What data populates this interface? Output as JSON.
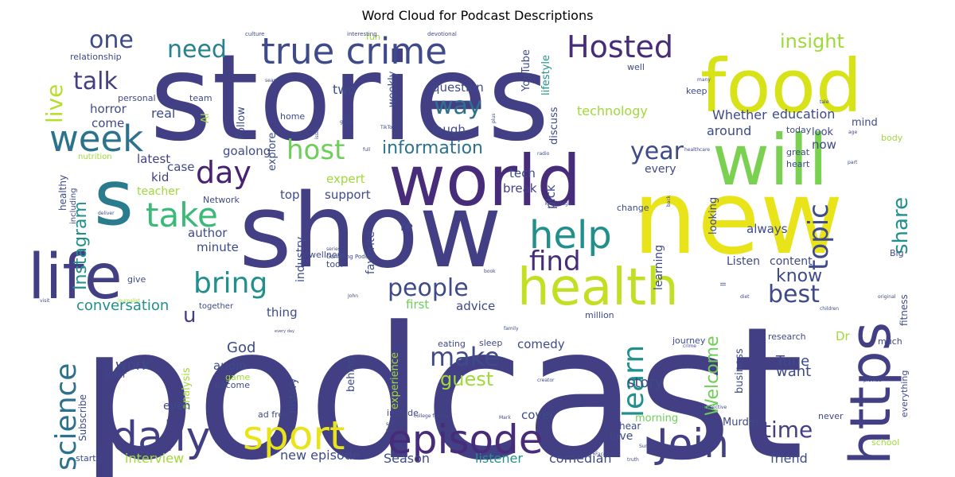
{
  "chart_data": {
    "type": "wordcloud",
    "title": "Word Cloud for Podcast Descriptions",
    "palette": [
      "#440154",
      "#482878",
      "#3e4989",
      "#31688e",
      "#26828e",
      "#1f9e89",
      "#35b779",
      "#6ece58",
      "#b5de2b",
      "#fde725"
    ],
    "words": [
      {
        "text": "podcast",
        "weight": 100,
        "color": "#433f84"
      },
      {
        "text": "stories",
        "weight": 96,
        "color": "#433f84"
      },
      {
        "text": "show",
        "weight": 82,
        "color": "#433f84"
      },
      {
        "text": "new",
        "weight": 80,
        "color": "#e8e419"
      },
      {
        "text": "food",
        "weight": 64,
        "color": "#d8e219"
      },
      {
        "text": "world",
        "weight": 60,
        "color": "#472c7a"
      },
      {
        "text": "will",
        "weight": 58,
        "color": "#7ad151"
      },
      {
        "text": "s",
        "weight": 55,
        "color": "#2a7b8e"
      },
      {
        "text": "health",
        "weight": 52,
        "color": "#c2df23"
      },
      {
        "text": "life",
        "weight": 52,
        "color": "#433f84"
      },
      {
        "text": "https",
        "weight": 50,
        "color": "#433f84"
      },
      {
        "text": "sport",
        "weight": 36,
        "color": "#e8e419"
      },
      {
        "text": "episode",
        "weight": 36,
        "color": "#472c7a"
      },
      {
        "text": "daily",
        "weight": 34,
        "color": "#433f84"
      },
      {
        "text": "Join",
        "weight": 34,
        "color": "#433f84"
      },
      {
        "text": "true crime",
        "weight": 32,
        "color": "#3e4a89"
      },
      {
        "text": "week",
        "weight": 32,
        "color": "#2c728e"
      },
      {
        "text": "Hosted",
        "weight": 30,
        "color": "#472c7a"
      },
      {
        "text": "help",
        "weight": 30,
        "color": "#21908d"
      },
      {
        "text": "day",
        "weight": 30,
        "color": "#482173"
      },
      {
        "text": "take",
        "weight": 28,
        "color": "#3aba76"
      },
      {
        "text": "bring",
        "weight": 28,
        "color": "#21908d"
      },
      {
        "text": "host",
        "weight": 28,
        "color": "#6ece58"
      },
      {
        "text": "science",
        "weight": 26,
        "color": "#2c728e"
      },
      {
        "text": "find",
        "weight": 26,
        "color": "#472c7a"
      },
      {
        "text": "people",
        "weight": 24,
        "color": "#3e4a89"
      },
      {
        "text": "best",
        "weight": 24,
        "color": "#3e4a89"
      },
      {
        "text": "topic",
        "weight": 24,
        "color": "#3e4a89"
      },
      {
        "text": "learn",
        "weight": 24,
        "color": "#21908d"
      },
      {
        "text": "need",
        "weight": 22,
        "color": "#26828e"
      },
      {
        "text": "one",
        "weight": 22,
        "color": "#3e4a89"
      },
      {
        "text": "talk",
        "weight": 22,
        "color": "#433f84"
      },
      {
        "text": "way",
        "weight": 22,
        "color": "#2c728e"
      },
      {
        "text": "year",
        "weight": 22,
        "color": "#3e4a89"
      },
      {
        "text": "make",
        "weight": 22,
        "color": "#3e4a89"
      },
      {
        "text": "time",
        "weight": 22,
        "color": "#433f84"
      },
      {
        "text": "share",
        "weight": 20,
        "color": "#21908d"
      },
      {
        "text": "live",
        "weight": 20,
        "color": "#b5de2b"
      },
      {
        "text": "insight",
        "weight": 18,
        "color": "#a0da39"
      },
      {
        "text": "information",
        "weight": 18,
        "color": "#2c728e"
      },
      {
        "text": "know",
        "weight": 18,
        "color": "#3e4a89"
      },
      {
        "text": "guest",
        "weight": 18,
        "color": "#a0da39"
      },
      {
        "text": "Instagram",
        "weight": 18,
        "color": "#21908d"
      },
      {
        "text": "Welcome",
        "weight": 18,
        "color": "#6ece58"
      },
      {
        "text": "u",
        "weight": 18,
        "color": "#433f84"
      },
      {
        "text": "God",
        "weight": 14,
        "color": "#3e4a89"
      },
      {
        "text": "work",
        "weight": 14,
        "color": "#3e4a89"
      },
      {
        "text": "story",
        "weight": 14,
        "color": "#3e4a89"
      },
      {
        "text": "Tune",
        "weight": 14,
        "color": "#3e4a89"
      },
      {
        "text": "want",
        "weight": 14,
        "color": "#3e4a89"
      },
      {
        "text": "conversation",
        "weight": 14,
        "color": "#21908d"
      },
      {
        "text": "comedian",
        "weight": 13,
        "color": "#3e4a89"
      },
      {
        "text": "interview",
        "weight": 13,
        "color": "#a0da39"
      },
      {
        "text": "new episode",
        "weight": 13,
        "color": "#3e4a89"
      },
      {
        "text": "Season",
        "weight": 13,
        "color": "#3e4a89"
      },
      {
        "text": "listener",
        "weight": 13,
        "color": "#21908d"
      },
      {
        "text": "friend",
        "weight": 13,
        "color": "#3e4a89"
      },
      {
        "text": "Murder",
        "weight": 11,
        "color": "#3e4a89"
      },
      {
        "text": "love",
        "weight": 12,
        "color": "#3e4a89"
      },
      {
        "text": "hear",
        "weight": 11,
        "color": "#3e4a89"
      },
      {
        "text": "morning",
        "weight": 11,
        "color": "#6ece58"
      },
      {
        "text": "cover",
        "weight": 13,
        "color": "#3e4a89"
      },
      {
        "text": "comedy",
        "weight": 13,
        "color": "#3e4a89"
      },
      {
        "text": "technology",
        "weight": 14,
        "color": "#a0da39"
      },
      {
        "text": "education",
        "weight": 14,
        "color": "#3e4a89"
      },
      {
        "text": "Whether",
        "weight": 14,
        "color": "#3e4a89"
      },
      {
        "text": "around",
        "weight": 14,
        "color": "#3e4a89"
      },
      {
        "text": "question",
        "weight": 13,
        "color": "#3e4a89"
      },
      {
        "text": "laugh",
        "weight": 13,
        "color": "#3e4a89"
      },
      {
        "text": "horror",
        "weight": 13,
        "color": "#3e4a89"
      },
      {
        "text": "real",
        "weight": 14,
        "color": "#3e4a89"
      },
      {
        "text": "come",
        "weight": 13,
        "color": "#3e4a89"
      },
      {
        "text": "case",
        "weight": 13,
        "color": "#3e4a89"
      },
      {
        "text": "latest",
        "weight": 13,
        "color": "#433f84"
      },
      {
        "text": "goalong",
        "weight": 13,
        "color": "#3e4a89"
      },
      {
        "text": "expert",
        "weight": 13,
        "color": "#a0da39"
      },
      {
        "text": "tech",
        "weight": 13,
        "color": "#3e4a89"
      },
      {
        "text": "break",
        "weight": 13,
        "color": "#433f84"
      },
      {
        "text": "support",
        "weight": 13,
        "color": "#3e4a89"
      },
      {
        "text": "top",
        "weight": 13,
        "color": "#3e4a89"
      },
      {
        "text": "teacher",
        "weight": 12,
        "color": "#a0da39"
      },
      {
        "text": "kid",
        "weight": 13,
        "color": "#433f84"
      },
      {
        "text": "author",
        "weight": 13,
        "color": "#3e4a89"
      },
      {
        "text": "minute",
        "weight": 13,
        "color": "#3e4a89"
      },
      {
        "text": "thing",
        "weight": 13,
        "color": "#3e4a89"
      },
      {
        "text": "advice",
        "weight": 13,
        "color": "#3e4a89"
      },
      {
        "text": "first",
        "weight": 13,
        "color": "#6ece58"
      },
      {
        "text": "re",
        "weight": 14,
        "color": "#3e4a89"
      },
      {
        "text": "favorite",
        "weight": 12,
        "color": "#3e4a89"
      },
      {
        "text": "industry",
        "weight": 12,
        "color": "#3e4a89"
      },
      {
        "text": "pick",
        "weight": 13,
        "color": "#3e4a89"
      },
      {
        "text": "two",
        "weight": 13,
        "color": "#3e4a89"
      },
      {
        "text": "weekly",
        "weight": 12,
        "color": "#3e4a89"
      },
      {
        "text": "lifestyle",
        "weight": 12,
        "color": "#21908d"
      },
      {
        "text": "YouTube",
        "weight": 12,
        "color": "#3e4a89"
      },
      {
        "text": "discuss",
        "weight": 12,
        "color": "#3e4a89"
      },
      {
        "text": "looking",
        "weight": 12,
        "color": "#3e4a89"
      },
      {
        "text": "always",
        "weight": 13,
        "color": "#3e4a89"
      },
      {
        "text": "every",
        "weight": 13,
        "color": "#3e4a89"
      },
      {
        "text": "now",
        "weight": 13,
        "color": "#3e4a89"
      },
      {
        "text": "look",
        "weight": 12,
        "color": "#3e4a89"
      },
      {
        "text": "mind",
        "weight": 12,
        "color": "#3e4a89"
      },
      {
        "text": "great",
        "weight": 10,
        "color": "#3e4a89"
      },
      {
        "text": "heart",
        "weight": 10,
        "color": "#3e4a89"
      },
      {
        "text": "today",
        "weight": 10,
        "color": "#3e4a89"
      },
      {
        "text": "fitness",
        "weight": 11,
        "color": "#3e4a89"
      },
      {
        "text": "content",
        "weight": 12,
        "color": "#3e4a89"
      },
      {
        "text": "Listen",
        "weight": 12,
        "color": "#3e4a89"
      },
      {
        "text": "learning",
        "weight": 12,
        "color": "#3e4a89"
      },
      {
        "text": "change",
        "weight": 10,
        "color": "#3e4a89"
      },
      {
        "text": "Big",
        "weight": 10,
        "color": "#3e4a89"
      },
      {
        "text": "Dr",
        "weight": 13,
        "color": "#a0da39"
      },
      {
        "text": "research",
        "weight": 10,
        "color": "#3e4a89"
      },
      {
        "text": "much",
        "weight": 10,
        "color": "#3e4a89"
      },
      {
        "text": "everything",
        "weight": 10,
        "color": "#3e4a89"
      },
      {
        "text": "school",
        "weight": 10,
        "color": "#a0da39"
      },
      {
        "text": "never",
        "weight": 10,
        "color": "#3e4a89"
      },
      {
        "text": "journey",
        "weight": 10,
        "color": "#3e4a89"
      },
      {
        "text": "million",
        "weight": 10,
        "color": "#3e4a89"
      },
      {
        "text": "business",
        "weight": 11,
        "color": "#3e4a89"
      },
      {
        "text": "eating",
        "weight": 10,
        "color": "#3e4a89"
      },
      {
        "text": "sleep",
        "weight": 10,
        "color": "#3e4a89"
      },
      {
        "text": "experience",
        "weight": 11,
        "color": "#a0da39"
      },
      {
        "text": "behind",
        "weight": 11,
        "color": "#3e4a89"
      },
      {
        "text": "history",
        "weight": 11,
        "color": "#3e4a89"
      },
      {
        "text": "analysis",
        "weight": 11,
        "color": "#a0da39"
      },
      {
        "text": "audio",
        "weight": 13,
        "color": "#3e4a89"
      },
      {
        "text": "game",
        "weight": 10,
        "color": "#a0da39"
      },
      {
        "text": "become",
        "weight": 10,
        "color": "#3e4a89"
      },
      {
        "text": "even",
        "weight": 12,
        "color": "#3e4a89"
      },
      {
        "text": "ad free",
        "weight": 10,
        "color": "#3e4a89"
      },
      {
        "text": "include",
        "weight": 10,
        "color": "#3e4a89"
      },
      {
        "text": "offer",
        "weight": 10,
        "color": "#3e4a89"
      },
      {
        "text": "Subscribe",
        "weight": 11,
        "color": "#3e4a89"
      },
      {
        "text": "start",
        "weight": 10,
        "color": "#3e4a89"
      },
      {
        "text": "give",
        "weight": 10,
        "color": "#3e4a89"
      },
      {
        "text": "wellness",
        "weight": 10,
        "color": "#3e4a89"
      },
      {
        "text": "tool",
        "weight": 10,
        "color": "#3e4a89"
      },
      {
        "text": "together",
        "weight": 9,
        "color": "#3e4a89"
      },
      {
        "text": "Network",
        "weight": 9,
        "color": "#3e4a89"
      },
      {
        "text": "healthy",
        "weight": 11,
        "color": "#3e4a89"
      },
      {
        "text": "including",
        "weight": 9,
        "color": "#3e4a89"
      },
      {
        "text": "nutrition",
        "weight": 9,
        "color": "#a0da39"
      },
      {
        "text": "personal",
        "weight": 10,
        "color": "#3e4a89"
      },
      {
        "text": "relationship",
        "weight": 10,
        "color": "#3e4a89"
      },
      {
        "text": "team",
        "weight": 10,
        "color": "#3e4a89"
      },
      {
        "text": "AI",
        "weight": 11,
        "color": "#a0da39"
      },
      {
        "text": "Follow",
        "weight": 11,
        "color": "#3e4a89"
      },
      {
        "text": "explore",
        "weight": 11,
        "color": "#3e4a89"
      },
      {
        "text": "home",
        "weight": 10,
        "color": "#3e4a89"
      },
      {
        "text": "keep",
        "weight": 10,
        "color": "#3e4a89"
      },
      {
        "text": "well",
        "weight": 10,
        "color": "#3e4a89"
      },
      {
        "text": "fun",
        "weight": 9,
        "color": "#a0da39"
      },
      {
        "text": "body",
        "weight": 9,
        "color": "#a0da39"
      },
      {
        "text": "devotional",
        "weight": 6,
        "color": "#3e4a89"
      },
      {
        "text": "interesting",
        "weight": 6,
        "color": "#3e4a89"
      },
      {
        "text": "culture",
        "weight": 6,
        "color": "#3e4a89"
      },
      {
        "text": "Gambling Podcast",
        "weight": 6,
        "color": "#3e4a89"
      },
      {
        "text": "every day",
        "weight": 5,
        "color": "#3e4a89"
      },
      {
        "text": "children",
        "weight": 5,
        "color": "#3e4a89"
      },
      {
        "text": "healthcare",
        "weight": 5,
        "color": "#3e4a89"
      },
      {
        "text": "college football",
        "weight": 5,
        "color": "#3e4a89"
      },
      {
        "text": "Sunday",
        "weight": 5,
        "color": "#3e4a89"
      },
      {
        "text": "truth",
        "weight": 5,
        "color": "#3e4a89"
      },
      {
        "text": "series",
        "weight": 5,
        "color": "#3e4a89"
      },
      {
        "text": "book",
        "weight": 5,
        "color": "#3e4a89"
      },
      {
        "text": "diet",
        "weight": 5,
        "color": "#3e4a89"
      },
      {
        "text": "original",
        "weight": 5,
        "color": "#3e4a89"
      },
      {
        "text": "deliver",
        "weight": 5,
        "color": "#3e4a89"
      },
      {
        "text": "journalist",
        "weight": 5,
        "color": "#a0da39"
      },
      {
        "text": "knowledge",
        "weight": 5,
        "color": "#3e4a89"
      },
      {
        "text": "creator",
        "weight": 5,
        "color": "#3e4a89"
      },
      {
        "text": "perspective",
        "weight": 5,
        "color": "#3e4a89"
      },
      {
        "text": "provide",
        "weight": 5,
        "color": "#3e4a89"
      },
      {
        "text": "TikTok",
        "weight": 5,
        "color": "#3e4a89"
      },
      {
        "text": "guide",
        "weight": 5,
        "color": "#3e4a89"
      },
      {
        "text": "tale",
        "weight": 5,
        "color": "#3e4a89"
      },
      {
        "text": "many",
        "weight": 5,
        "color": "#3e4a89"
      },
      {
        "text": "family",
        "weight": 5,
        "color": "#3e4a89"
      },
      {
        "text": "John",
        "weight": 5,
        "color": "#3e4a89"
      },
      {
        "text": "visit",
        "weight": 5,
        "color": "#3e4a89"
      },
      {
        "text": "radio",
        "weight": 5,
        "color": "#3e4a89"
      },
      {
        "text": "sex",
        "weight": 5,
        "color": "#3e4a89"
      },
      {
        "text": "self",
        "weight": 5,
        "color": "#3e4a89"
      },
      {
        "text": "Facebook",
        "weight": 5,
        "color": "#3e4a89"
      },
      {
        "text": "crime",
        "weight": 5,
        "color": "#3e4a89"
      },
      {
        "text": "plus",
        "weight": 5,
        "color": "#3e4a89"
      },
      {
        "text": "part",
        "weight": 5,
        "color": "#3e4a89"
      },
      {
        "text": "back",
        "weight": 5,
        "color": "#3e4a89"
      },
      {
        "text": "issue",
        "weight": 5,
        "color": "#3e4a89"
      },
      {
        "text": "full",
        "weight": 5,
        "color": "#3e4a89"
      },
      {
        "text": "ll",
        "weight": 7,
        "color": "#3e4a89"
      },
      {
        "text": "Mark",
        "weight": 5,
        "color": "#3e4a89"
      },
      {
        "text": "season",
        "weight": 5,
        "color": "#3e4a89"
      },
      {
        "text": "age",
        "weight": 5,
        "color": "#3e4a89"
      }
    ]
  }
}
